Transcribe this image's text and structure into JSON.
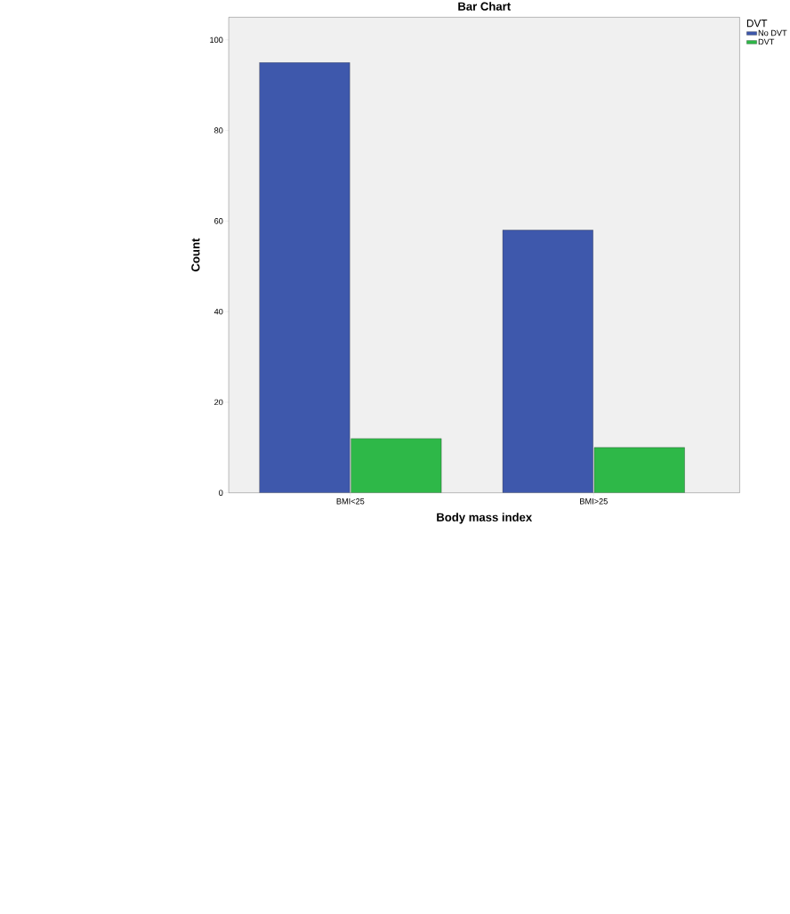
{
  "chart_data": {
    "type": "bar",
    "title": "Bar Chart",
    "xlabel": "Body mass index",
    "ylabel": "Count",
    "legend_title": "DVT",
    "categories": [
      "BMI<25",
      "BMI>25"
    ],
    "series": [
      {
        "name": "No DVT",
        "color": "#3e58ac",
        "values": [
          95,
          58
        ]
      },
      {
        "name": "DVT",
        "color": "#2eb848",
        "values": [
          12,
          10
        ]
      }
    ],
    "ylim": [
      0,
      105
    ],
    "yticks": [
      0,
      20,
      40,
      60,
      80,
      100
    ],
    "grid": false,
    "legend": "right"
  }
}
